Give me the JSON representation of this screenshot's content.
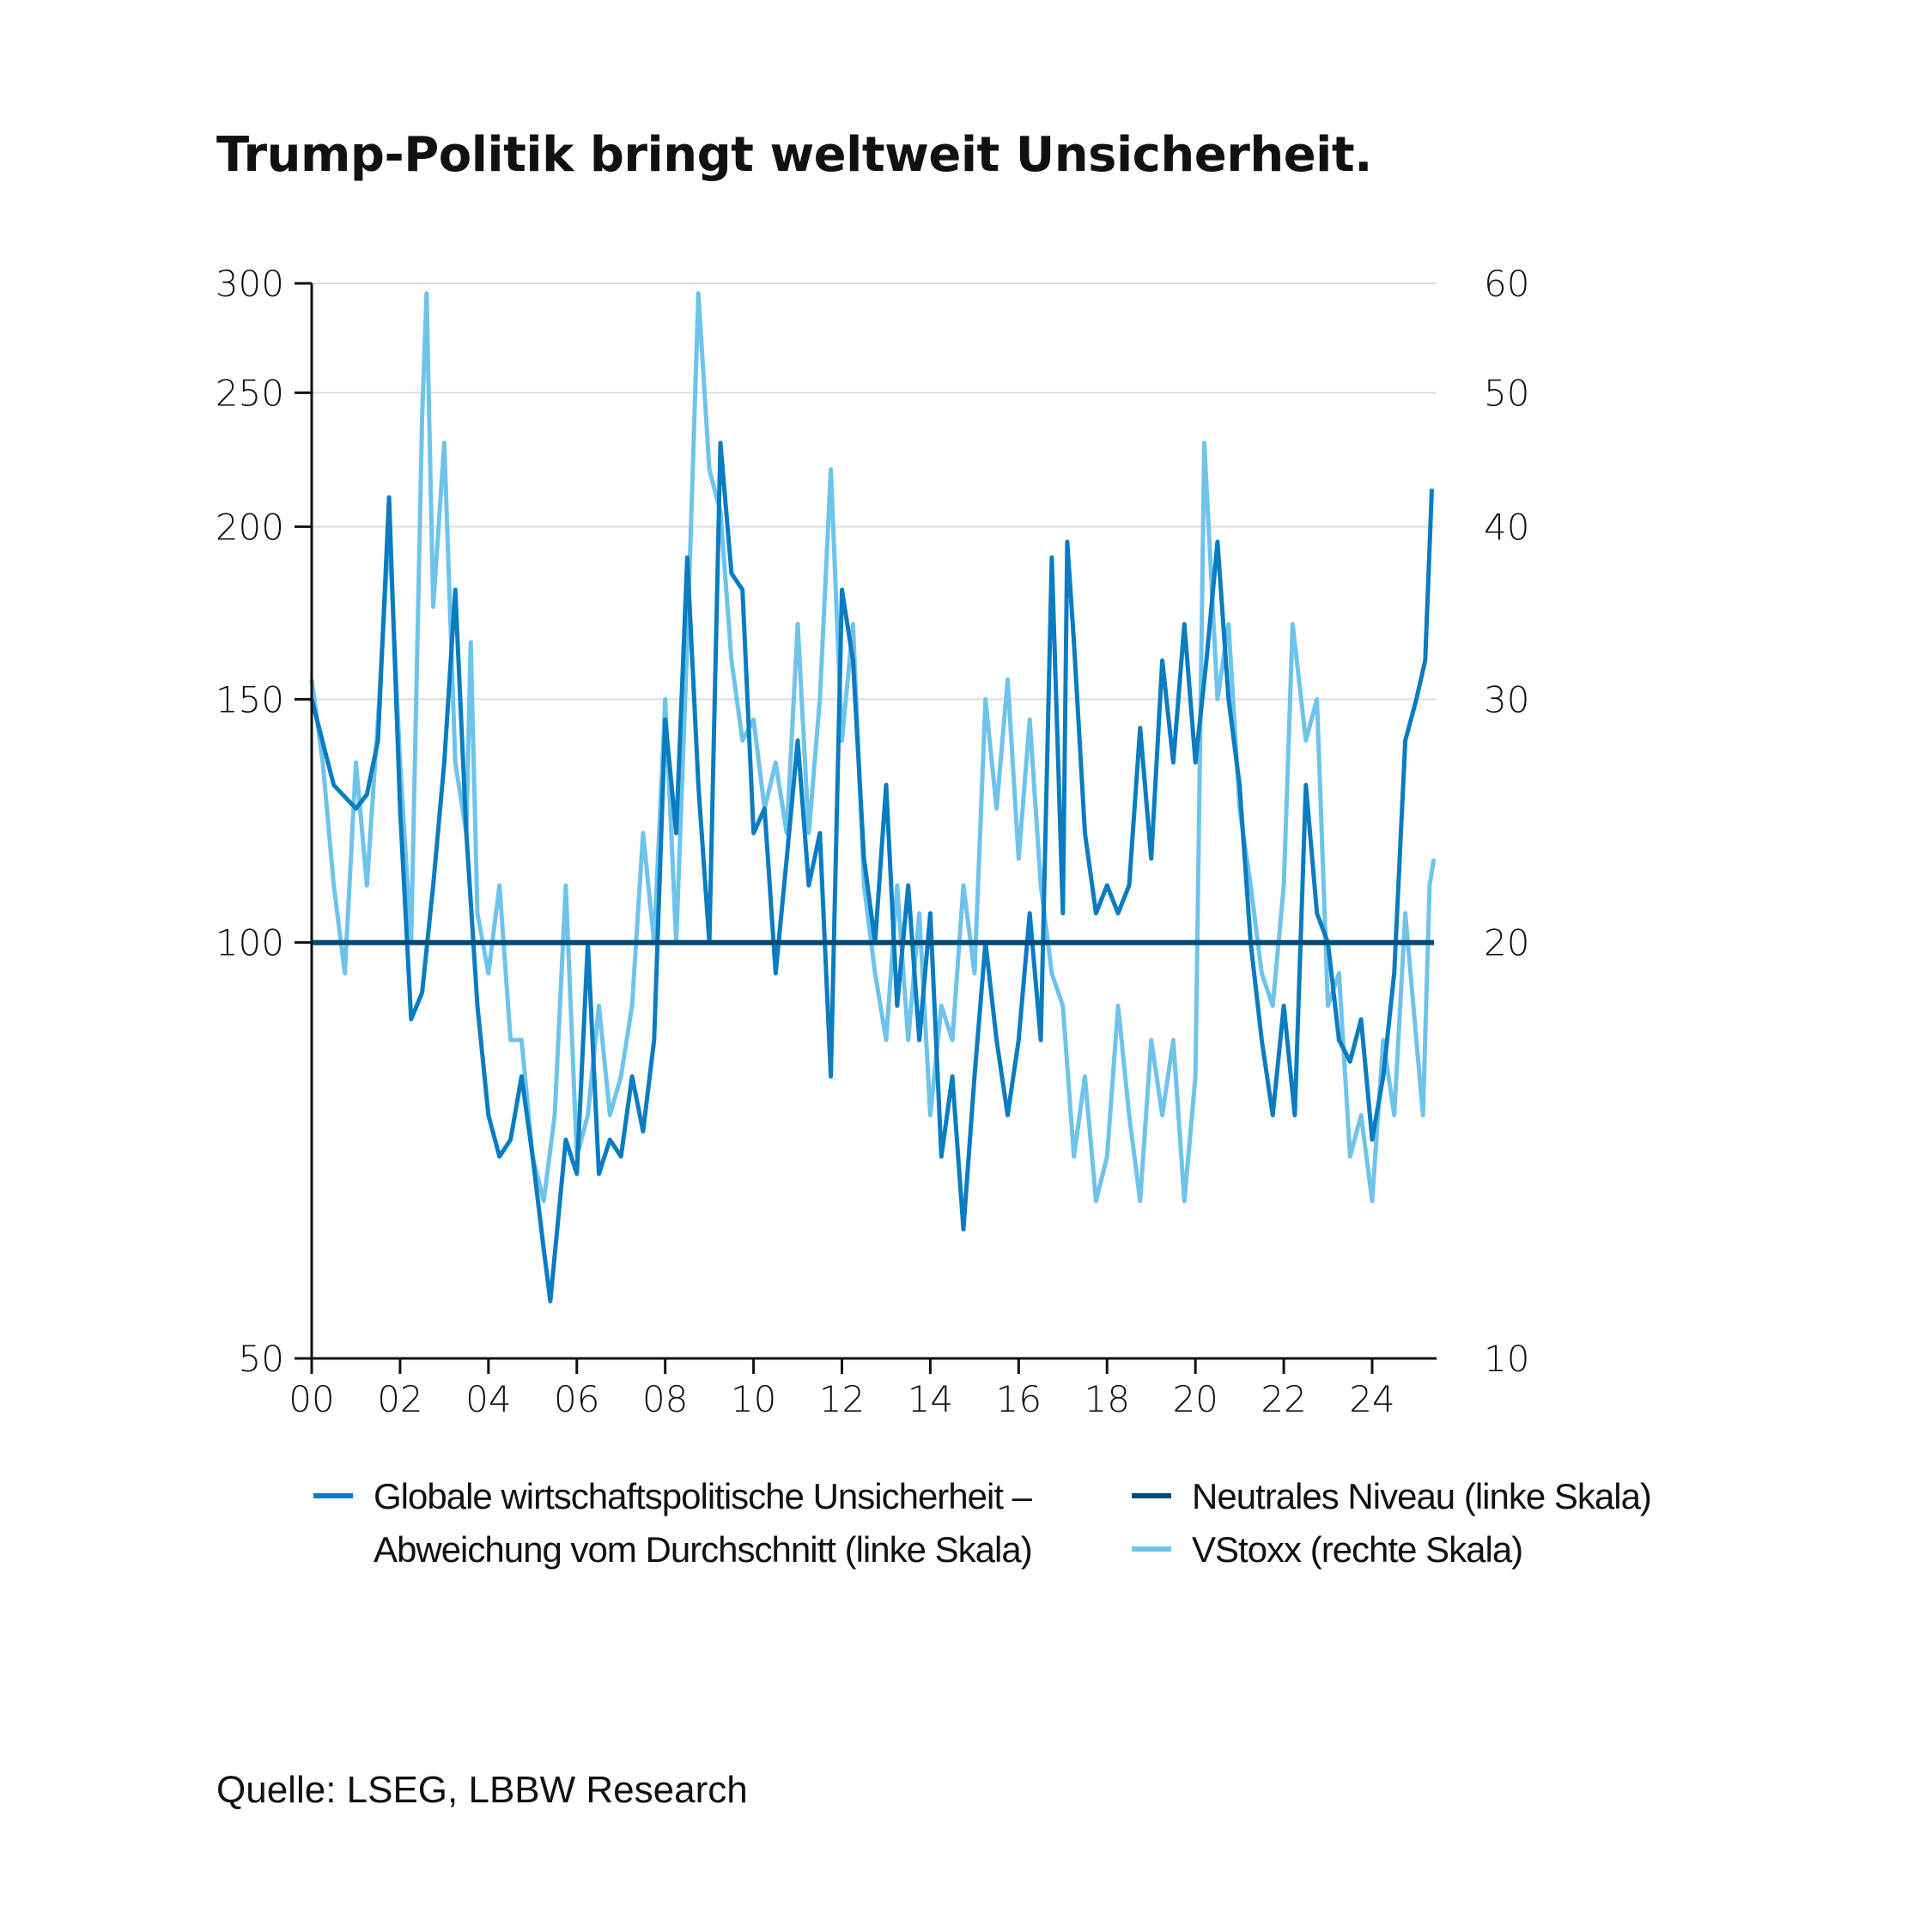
{
  "title": "Trump-Politik bringt weltweit Unsicherheit.",
  "source": "Quelle: LSEG, LBBW Research",
  "chart_data": {
    "type": "line",
    "title": "Trump-Politik bringt weltweit Unsicherheit.",
    "x_ticks": [
      "00",
      "02",
      "04",
      "06",
      "08",
      "10",
      "12",
      "14",
      "16",
      "18",
      "20",
      "22",
      "24"
    ],
    "x_tick_years": [
      2000,
      2002,
      2004,
      2006,
      2008,
      2010,
      2012,
      2014,
      2016,
      2018,
      2020,
      2022,
      2024
    ],
    "xlim": [
      2000,
      2025.5
    ],
    "y_left": {
      "scale": "log",
      "ylim": [
        50,
        300
      ],
      "ticks": [
        "50",
        "100",
        "150",
        "200",
        "250",
        "300"
      ],
      "tick_values": [
        50,
        100,
        150,
        200,
        250,
        300
      ]
    },
    "y_right": {
      "scale": "log",
      "ylim": [
        10,
        60
      ],
      "ticks": [
        "10",
        "20",
        "30",
        "40",
        "50",
        "60"
      ],
      "tick_values": [
        10,
        20,
        30,
        40,
        50,
        60
      ]
    },
    "grid": true,
    "legend_position": "bottom",
    "series": [
      {
        "name": "Globale wirtschaftspolitische Unsicherheit – Abweichung vom Durchschnitt (linke Skala)",
        "legend_lines": [
          "Globale wirtschaftspolitische Unsicherheit –",
          "Abweichung vom Durchschnitt (linke Skala)"
        ],
        "axis": "left",
        "color": "#0a7cc1",
        "x": [
          2000,
          2000.5,
          2001,
          2001.25,
          2001.5,
          2001.75,
          2002,
          2002.25,
          2002.5,
          2002.75,
          2003,
          2003.25,
          2003.5,
          2003.75,
          2004,
          2004.25,
          2004.5,
          2004.75,
          2005,
          2005.25,
          2005.4,
          2005.75,
          2006,
          2006.25,
          2006.5,
          2006.75,
          2007,
          2007.25,
          2007.5,
          2007.75,
          2008,
          2008.25,
          2008.5,
          2008.75,
          2009,
          2009.25,
          2009.5,
          2009.75,
          2010,
          2010.25,
          2010.5,
          2010.75,
          2011,
          2011.25,
          2011.5,
          2011.75,
          2012,
          2012.25,
          2012.5,
          2012.75,
          2013,
          2013.25,
          2013.5,
          2013.75,
          2014,
          2014.25,
          2014.5,
          2014.75,
          2015,
          2015.25,
          2015.5,
          2015.75,
          2016,
          2016.25,
          2016.5,
          2016.75,
          2017,
          2017.1,
          2017.25,
          2017.5,
          2017.75,
          2018,
          2018.25,
          2018.5,
          2018.75,
          2019,
          2019.25,
          2019.5,
          2019.75,
          2020,
          2020.25,
          2020.5,
          2020.75,
          2021,
          2021.25,
          2021.5,
          2021.75,
          2022,
          2022.25,
          2022.5,
          2022.75,
          2023,
          2023.25,
          2023.5,
          2023.75,
          2024,
          2024.25,
          2024.5,
          2024.75,
          2025,
          2025.2,
          2025.35
        ],
        "values": [
          150,
          130,
          125,
          128,
          140,
          210,
          125,
          88,
          92,
          110,
          135,
          180,
          120,
          90,
          75,
          70,
          72,
          80,
          70,
          60,
          55,
          72,
          68,
          100,
          68,
          72,
          70,
          80,
          73,
          85,
          145,
          120,
          190,
          130,
          100,
          230,
          185,
          180,
          120,
          125,
          95,
          115,
          140,
          110,
          120,
          80,
          180,
          160,
          115,
          100,
          130,
          90,
          110,
          85,
          105,
          70,
          80,
          62,
          80,
          100,
          85,
          75,
          85,
          105,
          85,
          190,
          105,
          195,
          165,
          120,
          105,
          110,
          105,
          110,
          143,
          115,
          160,
          135,
          170,
          135,
          160,
          195,
          150,
          130,
          100,
          85,
          75,
          90,
          75,
          130,
          105,
          100,
          85,
          82,
          88,
          72,
          80,
          95,
          140,
          150,
          160,
          213
        ]
      },
      {
        "name": "Neutrales Niveau (linke Skala)",
        "axis": "left",
        "color": "#004a77",
        "x": [
          2000,
          2025.4
        ],
        "values": [
          100,
          100
        ]
      },
      {
        "name": "VStoxx (rechte Skala)",
        "axis": "right",
        "color": "#6ec3ea",
        "x": [
          2000,
          2000.25,
          2000.5,
          2000.75,
          2001,
          2001.25,
          2001.5,
          2001.75,
          2002,
          2002.25,
          2002.5,
          2002.6,
          2002.75,
          2003,
          2003.25,
          2003.5,
          2003.6,
          2003.75,
          2004,
          2004.25,
          2004.5,
          2004.75,
          2005,
          2005.25,
          2005.5,
          2005.75,
          2006,
          2006.25,
          2006.5,
          2006.75,
          2007,
          2007.25,
          2007.5,
          2007.75,
          2008,
          2008.25,
          2008.5,
          2008.75,
          2009,
          2009.25,
          2009.5,
          2009.75,
          2010,
          2010.25,
          2010.5,
          2010.75,
          2011,
          2011.25,
          2011.5,
          2011.75,
          2012,
          2012.25,
          2012.5,
          2012.75,
          2013,
          2013.25,
          2013.5,
          2013.75,
          2014,
          2014.25,
          2014.5,
          2014.75,
          2015,
          2015.25,
          2015.5,
          2015.75,
          2016,
          2016.25,
          2016.5,
          2016.75,
          2017,
          2017.25,
          2017.5,
          2017.75,
          2018,
          2018.25,
          2018.5,
          2018.75,
          2019,
          2019.25,
          2019.5,
          2019.75,
          2020,
          2020.2,
          2020.5,
          2020.75,
          2021,
          2021.25,
          2021.5,
          2021.75,
          2022,
          2022.2,
          2022.5,
          2022.75,
          2023,
          2023.25,
          2023.5,
          2023.75,
          2024,
          2024.25,
          2024.5,
          2024.75,
          2025,
          2025.15,
          2025.3,
          2025.4
        ],
        "values": [
          31,
          27,
          22,
          19,
          27,
          22,
          29,
          40,
          27,
          20,
          48,
          59,
          35,
          46,
          27,
          24,
          33,
          21,
          19,
          22,
          17,
          17,
          14,
          13,
          15,
          22,
          14,
          15,
          18,
          15,
          16,
          18,
          24,
          20,
          30,
          20,
          33,
          59,
          44,
          41,
          32,
          28,
          29,
          25,
          27,
          24,
          34,
          24,
          30,
          44,
          28,
          34,
          22,
          19,
          17,
          22,
          17,
          21,
          15,
          18,
          17,
          22,
          19,
          30,
          25,
          31,
          23,
          29,
          22,
          19,
          18,
          14,
          16,
          13,
          14,
          18,
          15,
          13,
          17,
          15,
          17,
          13,
          16,
          46,
          30,
          34,
          25,
          22,
          19,
          18,
          22,
          34,
          28,
          30,
          18,
          19,
          14,
          15,
          13,
          17,
          15,
          21,
          17,
          15,
          22,
          23
        ]
      }
    ]
  }
}
